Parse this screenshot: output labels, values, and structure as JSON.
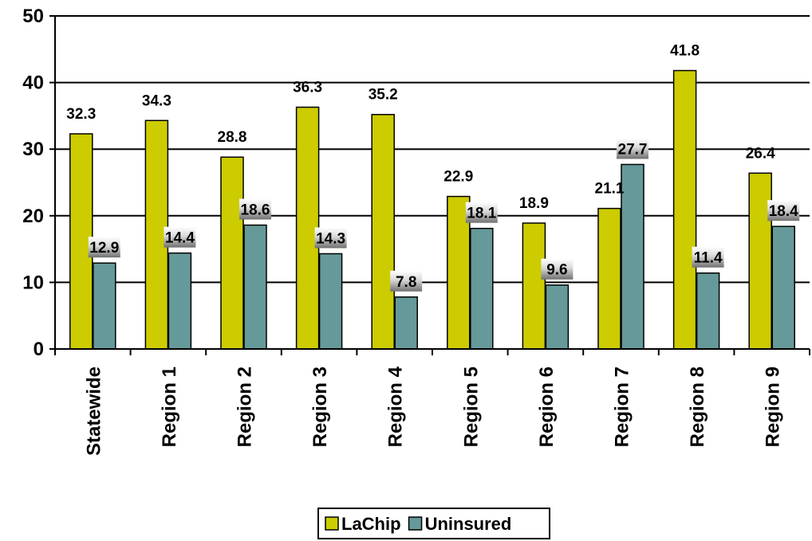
{
  "chart_data": {
    "type": "bar",
    "categories": [
      "Statewide",
      "Region 1",
      "Region 2",
      "Region 3",
      "Region 4",
      "Region 5",
      "Region 6",
      "Region 7",
      "Region 8",
      "Region 9"
    ],
    "series": [
      {
        "name": "LaChip",
        "color": "#cccc00",
        "values": [
          32.3,
          34.3,
          28.8,
          36.3,
          35.2,
          22.9,
          18.9,
          21.1,
          41.8,
          26.4
        ]
      },
      {
        "name": "Uninsured",
        "color": "#669999",
        "values": [
          12.9,
          14.4,
          18.6,
          14.3,
          7.8,
          18.1,
          9.6,
          27.7,
          11.4,
          18.4
        ]
      }
    ],
    "ylim": [
      0,
      50
    ],
    "yticks": [
      0,
      10,
      20,
      30,
      40,
      50
    ],
    "title": "",
    "xlabel": "",
    "ylabel": "",
    "grid": true,
    "legend": "bottom-center"
  }
}
